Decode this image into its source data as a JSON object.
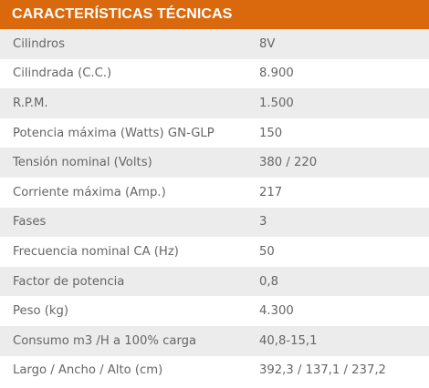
{
  "table": {
    "title": "CARACTERÍSTICAS TÉCNICAS",
    "rows": [
      {
        "label": "Cilindros",
        "value": "8V"
      },
      {
        "label": "Cilindrada (C.C.)",
        "value": "8.900"
      },
      {
        "label": "R.P.M.",
        "value": "1.500"
      },
      {
        "label": "Potencia máxima (Watts) GN-GLP",
        "value": "150"
      },
      {
        "label": "Tensión nominal (Volts)",
        "value": "380 / 220"
      },
      {
        "label": "Corriente máxima (Amp.)",
        "value": "217"
      },
      {
        "label": "Fases",
        "value": "3"
      },
      {
        "label": "Frecuencia nominal CA (Hz)",
        "value": "50"
      },
      {
        "label": "Factor de potencia",
        "value": "0,8"
      },
      {
        "label": "Peso (kg)",
        "value": "4.300"
      },
      {
        "label": "Consumo m3 /H a 100% carga",
        "value": "40,8-15,1"
      },
      {
        "label": "Largo / Ancho / Alto (cm)",
        "value": "392,3 / 137,1 / 237,2"
      }
    ]
  },
  "colors": {
    "header_bg": "#d9690c",
    "stripe": "#ececec",
    "text": "#666666"
  }
}
